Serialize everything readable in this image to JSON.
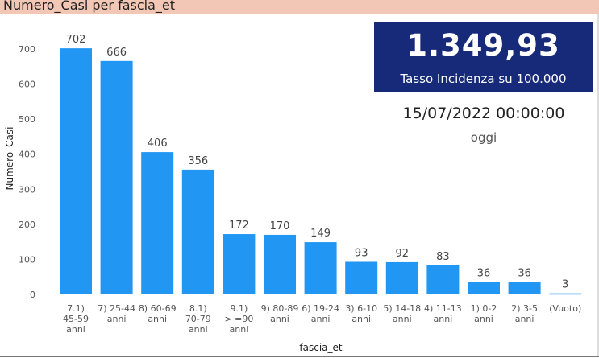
{
  "header": {
    "title": "Numero_Casi per fascia_et"
  },
  "card": {
    "value": "1.349,93",
    "label": "Tasso Incidenza su 100.000"
  },
  "date_text": "15/07/2022 00:00:00",
  "date_caption": "oggi",
  "colors": {
    "bar": "#2196f3",
    "card_bg": "#172a7a",
    "header_bg": "#f3c7b5"
  },
  "chart_data": {
    "type": "bar",
    "xlabel": "fascia_et",
    "ylabel": "Numero_Casi",
    "ylim": [
      0,
      750
    ],
    "yticks": [
      0,
      100,
      200,
      300,
      400,
      500,
      600,
      700
    ],
    "grid": false,
    "categories": [
      "7.1) 45-59 anni",
      "7) 25-44 anni",
      "8) 60-69 anni",
      "8.1) 70-79 anni",
      "9.1) >=90 anni",
      "9) 80-89 anni",
      "6) 19-24 anni",
      "3) 6-10 anni",
      "5) 14-18 anni",
      "4) 11-13 anni",
      "1) 0-2 anni",
      "2) 3-5 anni",
      "(Vuoto)"
    ],
    "category_lines": [
      [
        "7.1)",
        "45-59",
        "anni"
      ],
      [
        "7) 25-44",
        "anni"
      ],
      [
        "8) 60-69",
        "anni"
      ],
      [
        "8.1)",
        "70-79",
        "anni"
      ],
      [
        "9.1)",
        "> =90",
        "anni"
      ],
      [
        "9) 80-89",
        "anni"
      ],
      [
        "6) 19-24",
        "anni"
      ],
      [
        "3) 6-10",
        "anni"
      ],
      [
        "5) 14-18",
        "anni"
      ],
      [
        "4) 11-13",
        "anni"
      ],
      [
        "1) 0-2",
        "anni"
      ],
      [
        "2) 3-5",
        "anni"
      ],
      [
        "(Vuoto)"
      ]
    ],
    "values": [
      702,
      666,
      406,
      356,
      172,
      170,
      149,
      93,
      92,
      83,
      36,
      36,
      3
    ]
  }
}
